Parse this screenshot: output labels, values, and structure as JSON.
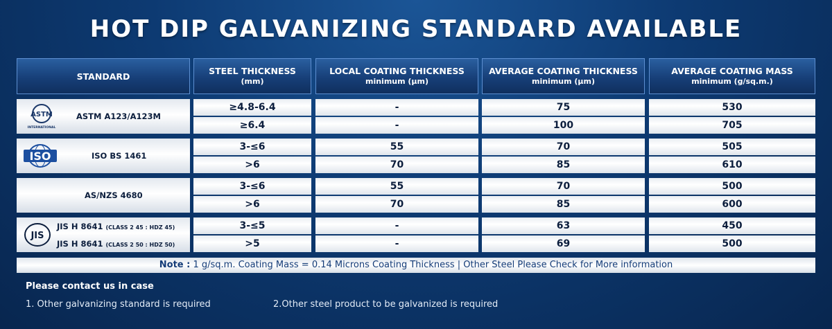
{
  "title": "HOT DIP GALVANIZING STANDARD AVAILABLE",
  "headers": [
    {
      "line1": "STANDARD",
      "line2": ""
    },
    {
      "line1": "STEEL THICKNESS",
      "line2": "(mm)"
    },
    {
      "line1": "LOCAL COATING THICKNESS",
      "line2": "minimum (µm)"
    },
    {
      "line1": "AVERAGE COATING THICKNESS",
      "line2": "minimum (µm)"
    },
    {
      "line1": "AVERAGE COATING MASS",
      "line2": "minimum (g/sq.m.)"
    }
  ],
  "groups": [
    {
      "logo": "astm-logo-icon",
      "logo_text": "ASTM",
      "logo_subtext": "INTERNATIONAL",
      "standard": "ASTM A123/A123M",
      "rows": [
        {
          "thickness": "≥4.8-6.4",
          "local": "-",
          "average": "75",
          "mass": "530"
        },
        {
          "thickness": "≥6.4",
          "local": "-",
          "average": "100",
          "mass": "705"
        }
      ]
    },
    {
      "logo": "iso-logo-icon",
      "logo_text": "ISO",
      "standard": "ISO BS 1461",
      "rows": [
        {
          "thickness": "3-≤6",
          "local": "55",
          "average": "70",
          "mass": "505"
        },
        {
          "thickness": ">6",
          "local": "70",
          "average": "85",
          "mass": "610"
        }
      ]
    },
    {
      "standard": "AS/NZS 4680",
      "rows": [
        {
          "thickness": "3-≤6",
          "local": "55",
          "average": "70",
          "mass": "500"
        },
        {
          "thickness": ">6",
          "local": "70",
          "average": "85",
          "mass": "600"
        }
      ]
    },
    {
      "logo": "jis-logo-icon",
      "logo_text": "JIS",
      "rows": [
        {
          "standard": "JIS H 8641",
          "code": "(CLASS 2 45 : HDZ 45)",
          "thickness": "3-≤5",
          "local": "-",
          "average": "63",
          "mass": "450"
        },
        {
          "standard": "JIS H 8641",
          "code": "(CLASS 2 50 : HDZ 50)",
          "thickness": ">5",
          "local": "-",
          "average": "69",
          "mass": "500"
        }
      ]
    }
  ],
  "note": {
    "label": "Note :",
    "text": "1 g/sq.m. Coating Mass = 0.14 Microns Coating Thickness | Other Steel Please Check for More information"
  },
  "contact": {
    "title": "Please contact us in case",
    "items": [
      "1. Other galvanizing standard is required",
      "2.Other steel product to be galvanized is required"
    ]
  },
  "colors": {
    "background": "#0d3a72",
    "header": "#173f78",
    "text_dark": "#0c1e3d",
    "note_text": "#143c78"
  }
}
